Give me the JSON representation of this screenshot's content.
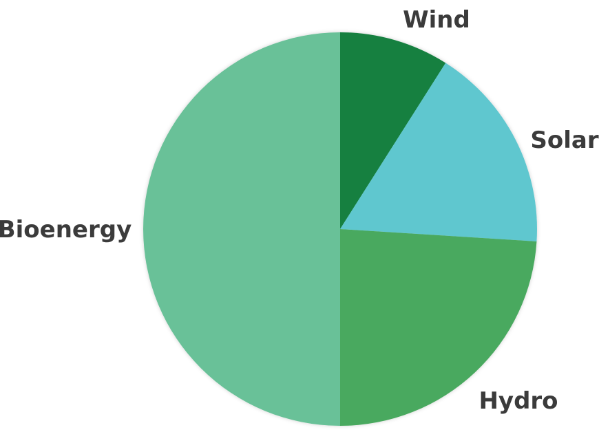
{
  "chart_data": {
    "type": "pie",
    "title": "",
    "start_angle_deg": 0,
    "direction": "clockwise",
    "slices": [
      {
        "label": "Wind",
        "value": 9,
        "color": "#138040"
      },
      {
        "label": "Solar",
        "value": 17,
        "color": "#5ec7cf"
      },
      {
        "label": "Hydro",
        "value": 24,
        "color": "#4aa95e"
      },
      {
        "label": "Bioenergy",
        "value": 50,
        "color": "#69c198"
      }
    ],
    "legend": "none",
    "labels_outside": true
  }
}
